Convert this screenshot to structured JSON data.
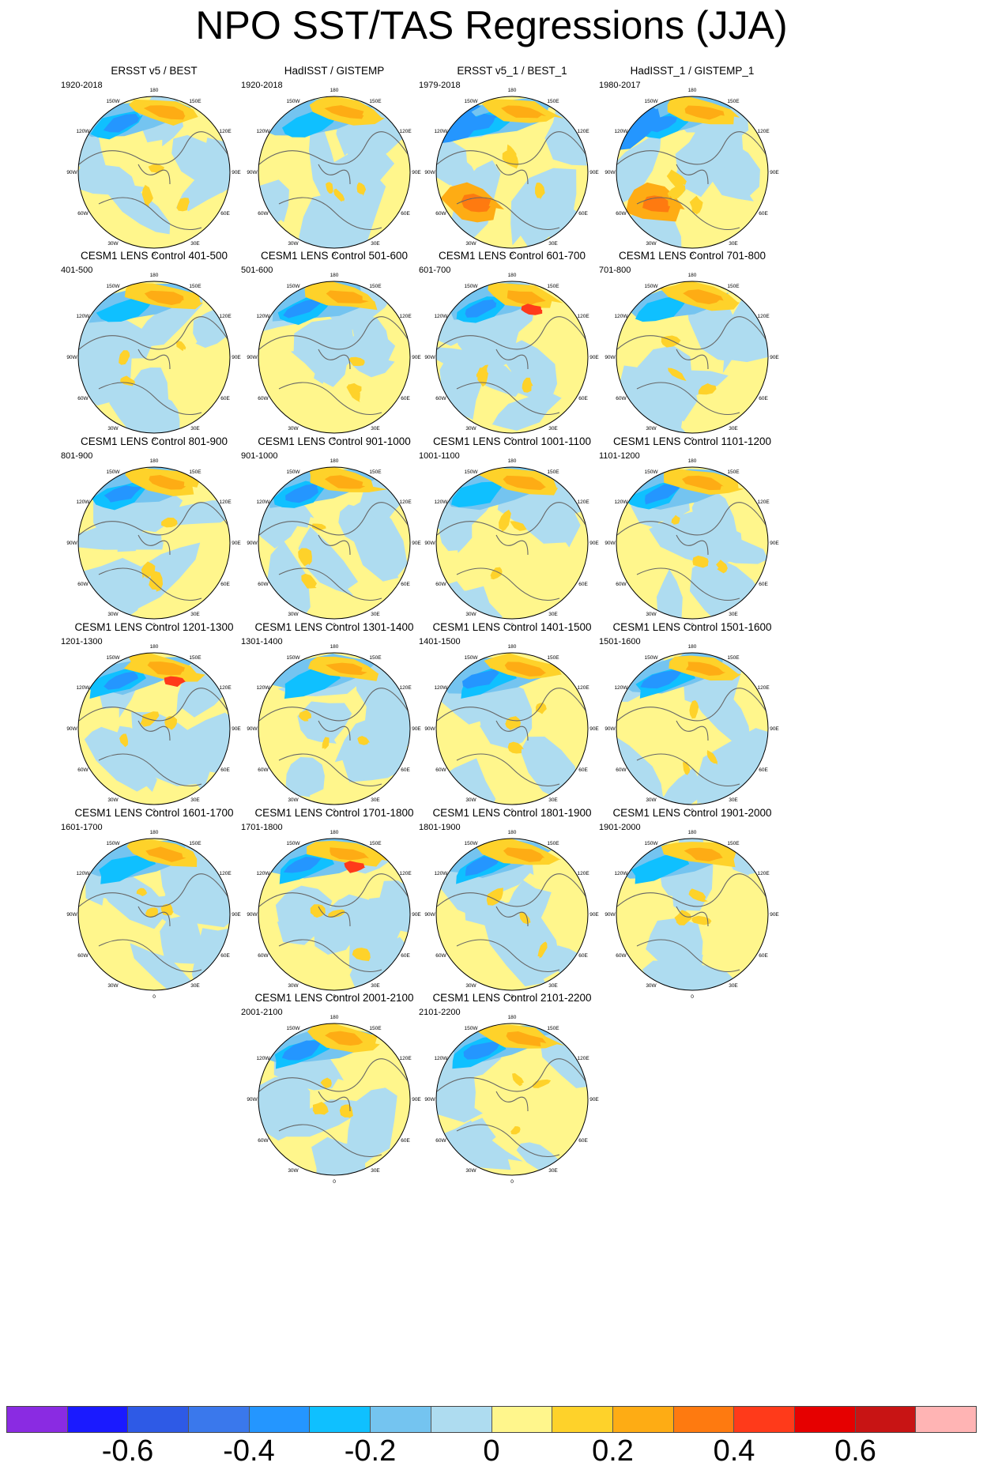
{
  "title": "NPO SST/TAS Regressions (JJA)",
  "map": {
    "longitude_labels": [
      "180",
      "150E",
      "120E",
      "90E",
      "60E",
      "30E",
      "0",
      "30W",
      "60W",
      "90W",
      "120W",
      "150W"
    ]
  },
  "panels": [
    {
      "title": "ERSST v5 / BEST",
      "period": "1920-2018"
    },
    {
      "title": "HadISST / GISTEMP",
      "period": "1920-2018"
    },
    {
      "title": "ERSST v5_1 / BEST_1",
      "period": "1979-2018"
    },
    {
      "title": "HadISST_1 / GISTEMP_1",
      "period": "1980-2017"
    },
    {
      "title": "CESM1 LENS Control 401-500",
      "period": "401-500"
    },
    {
      "title": "CESM1 LENS Control 501-600",
      "period": "501-600"
    },
    {
      "title": "CESM1 LENS Control 601-700",
      "period": "601-700"
    },
    {
      "title": "CESM1 LENS Control 701-800",
      "period": "701-800"
    },
    {
      "title": "CESM1 LENS Control 801-900",
      "period": "801-900"
    },
    {
      "title": "CESM1 LENS Control 901-1000",
      "period": "901-1000"
    },
    {
      "title": "CESM1 LENS Control 1001-1100",
      "period": "1001-1100"
    },
    {
      "title": "CESM1 LENS Control 1101-1200",
      "period": "1101-1200"
    },
    {
      "title": "CESM1 LENS Control 1201-1300",
      "period": "1201-1300"
    },
    {
      "title": "CESM1 LENS Control 1301-1400",
      "period": "1301-1400"
    },
    {
      "title": "CESM1 LENS Control 1401-1500",
      "period": "1401-1500"
    },
    {
      "title": "CESM1 LENS Control 1501-1600",
      "period": "1501-1600"
    },
    {
      "title": "CESM1 LENS Control 1601-1700",
      "period": "1601-1700"
    },
    {
      "title": "CESM1 LENS Control 1701-1800",
      "period": "1701-1800"
    },
    {
      "title": "CESM1 LENS Control 1801-1900",
      "period": "1801-1900"
    },
    {
      "title": "CESM1 LENS Control 1901-2000",
      "period": "1901-2000"
    },
    {
      "title": "CESM1 LENS Control 2001-2100",
      "period": "2001-2100"
    },
    {
      "title": "CESM1 LENS Control 2101-2200",
      "period": "2101-2200"
    }
  ],
  "colorbar": {
    "colors": [
      "#8a2be2",
      "#1a1aff",
      "#2e5ae6",
      "#3a78ec",
      "#2496ff",
      "#0fc0ff",
      "#74c4f0",
      "#aedcf0",
      "#fff68c",
      "#fed22a",
      "#feac14",
      "#fe7a10",
      "#ff3a1a",
      "#e60000",
      "#c81414",
      "#ffb4b4"
    ],
    "labels": [
      "-0.6",
      "-0.4",
      "-0.2",
      "0",
      "0.2",
      "0.4",
      "0.6"
    ]
  }
}
